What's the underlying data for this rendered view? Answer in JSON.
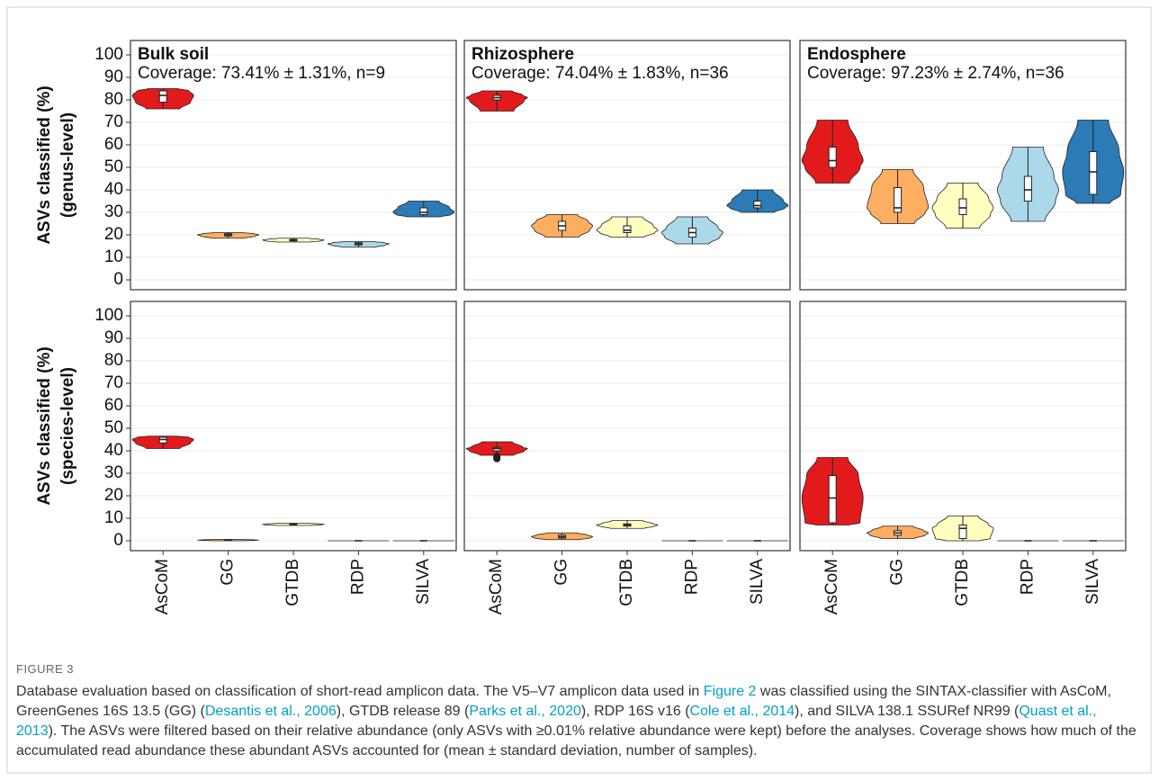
{
  "chart_data": {
    "type": "violin",
    "categories": [
      "AsCoM",
      "GG",
      "GTDB",
      "RDP",
      "SILVA"
    ],
    "colors": [
      "#e31a1c",
      "#fdae61",
      "#ffffbf",
      "#abd9e9",
      "#2c7bb6"
    ],
    "ylim": [
      -4.4,
      106.4
    ],
    "yticks": [
      0,
      10,
      20,
      30,
      40,
      50,
      60,
      70,
      80,
      90,
      100
    ],
    "grid": true,
    "columns": [
      {
        "title": "Bulk soil",
        "subtitle": "Coverage: 73.41% ± 1.31%, n=9"
      },
      {
        "title": "Rhizosphere",
        "subtitle": "Coverage: 74.04% ± 1.83%, n=36"
      },
      {
        "title": "Endosphere",
        "subtitle": "Coverage: 97.23% ± 2.74%, n=36"
      }
    ],
    "rows": [
      {
        "ylabel": [
          "ASVs classified (%)",
          "(genus-level)"
        ]
      },
      {
        "ylabel": [
          "ASVs classified (%)",
          "(species-level)"
        ]
      }
    ],
    "panels": [
      {
        "min": [
          76,
          18.5,
          16.8,
          14.5,
          28
        ],
        "q1": [
          79,
          19.5,
          17.3,
          15.5,
          29
        ],
        "median": [
          82,
          20,
          17.7,
          16,
          30
        ],
        "q3": [
          84,
          20.5,
          18,
          16.5,
          32
        ],
        "max": [
          85,
          21,
          18.5,
          17,
          35
        ]
      },
      {
        "min": [
          75,
          19,
          19,
          16,
          30
        ],
        "q1": [
          80,
          22,
          21,
          19,
          32
        ],
        "median": [
          81,
          24,
          22,
          21,
          33
        ],
        "q3": [
          82,
          26,
          24,
          23,
          35
        ],
        "max": [
          84,
          29,
          28,
          28,
          40
        ]
      },
      {
        "min": [
          43,
          25,
          23,
          26,
          34
        ],
        "q1": [
          50,
          30,
          29,
          35,
          38
        ],
        "median": [
          53,
          32,
          32,
          40,
          48
        ],
        "q3": [
          59,
          41,
          36,
          46,
          57
        ],
        "max": [
          71,
          49,
          43,
          59,
          71
        ]
      },
      {
        "min": [
          41,
          0,
          6.8,
          0,
          0
        ],
        "q1": [
          43.5,
          0.2,
          7.1,
          0,
          0
        ],
        "median": [
          45,
          0.3,
          7.3,
          0,
          0
        ],
        "q3": [
          46,
          0.4,
          7.5,
          0,
          0
        ],
        "max": [
          46.5,
          0.6,
          7.8,
          0,
          0
        ]
      },
      {
        "min": [
          38,
          0.5,
          5.5,
          0,
          0
        ],
        "q1": [
          40,
          1.2,
          6.5,
          0,
          0
        ],
        "median": [
          41,
          1.8,
          7,
          0,
          0
        ],
        "q3": [
          41.5,
          2.5,
          7.5,
          0,
          0
        ],
        "max": [
          44,
          3.5,
          9,
          0,
          0
        ],
        "outliers": [
          [
            36.5,
            37,
            37.5
          ],
          [],
          [],
          [],
          []
        ]
      },
      {
        "min": [
          7,
          1,
          0,
          0,
          0
        ],
        "q1": [
          8,
          2.5,
          1,
          0,
          0
        ],
        "median": [
          19,
          3.5,
          5.5,
          0,
          0
        ],
        "q3": [
          29,
          4.5,
          7,
          0,
          0
        ],
        "max": [
          37,
          6.5,
          11,
          0,
          0
        ]
      }
    ]
  },
  "figure": {
    "label": "FIGURE 3",
    "caption": [
      "Database evaluation based on classification of short-read amplicon data. The V5–V7 amplicon data used in ",
      {
        "text": "Figure 2",
        "link": true
      },
      " was classified using the SINTAX-classifier with AsCoM, GreenGenes 16S 13.5 (GG) (",
      {
        "text": "Desantis et al., 2006",
        "link": true
      },
      "), GTDB release 89 (",
      {
        "text": "Parks et al., 2020",
        "link": true
      },
      "), RDP 16S v16 (",
      {
        "text": "Cole et al., 2014",
        "link": true
      },
      "), and SILVA 138.1 SSURef NR99 (",
      {
        "text": "Quast et al., 2013",
        "link": true
      },
      "). The ASVs were filtered based on their relative abundance (only ASVs with ≥0.01% relative abundance were kept) before the analyses. Coverage shows how much of the accumulated read abundance these abundant ASVs accounted for (mean ± standard deviation, number of samples)."
    ]
  }
}
